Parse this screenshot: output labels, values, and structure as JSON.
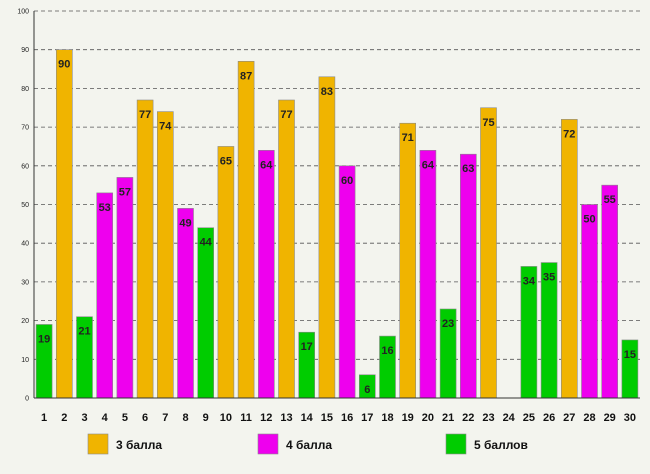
{
  "chart_data": {
    "type": "bar",
    "title": "",
    "xlabel": "",
    "ylabel": "",
    "ylim": [
      0,
      100
    ],
    "ytick_step": 10,
    "grid": true,
    "legend_position": "bottom",
    "categories": [
      "1",
      "2",
      "3",
      "4",
      "5",
      "6",
      "7",
      "8",
      "9",
      "10",
      "11",
      "12",
      "13",
      "14",
      "15",
      "16",
      "17",
      "18",
      "19",
      "20",
      "21",
      "22",
      "23",
      "24",
      "25",
      "26",
      "27",
      "28",
      "29",
      "30"
    ],
    "bars": [
      {
        "category": "1",
        "value": 19,
        "series": "5 баллов"
      },
      {
        "category": "2",
        "value": 90,
        "series": "3 балла"
      },
      {
        "category": "3",
        "value": 21,
        "series": "5 баллов"
      },
      {
        "category": "4",
        "value": 53,
        "series": "4 балла"
      },
      {
        "category": "5",
        "value": 57,
        "series": "4 балла"
      },
      {
        "category": "6",
        "value": 77,
        "series": "3 балла"
      },
      {
        "category": "7",
        "value": 74,
        "series": "3 балла"
      },
      {
        "category": "8",
        "value": 49,
        "series": "4 балла"
      },
      {
        "category": "9",
        "value": 44,
        "series": "5 баллов"
      },
      {
        "category": "10",
        "value": 65,
        "series": "3 балла"
      },
      {
        "category": "11",
        "value": 87,
        "series": "3 балла"
      },
      {
        "category": "12",
        "value": 64,
        "series": "4 балла"
      },
      {
        "category": "13",
        "value": 77,
        "series": "3 балла"
      },
      {
        "category": "14",
        "value": 17,
        "series": "5 баллов"
      },
      {
        "category": "15",
        "value": 83,
        "series": "3 балла"
      },
      {
        "category": "16",
        "value": 60,
        "series": "4 балла"
      },
      {
        "category": "17",
        "value": 6,
        "series": "5 баллов"
      },
      {
        "category": "18",
        "value": 16,
        "series": "5 баллов"
      },
      {
        "category": "19",
        "value": 71,
        "series": "3 балла"
      },
      {
        "category": "20",
        "value": 64,
        "series": "4 балла"
      },
      {
        "category": "21",
        "value": 23,
        "series": "5 баллов"
      },
      {
        "category": "22",
        "value": 63,
        "series": "4 балла"
      },
      {
        "category": "23",
        "value": 75,
        "series": "3 балла"
      },
      {
        "category": "24",
        "value": null,
        "series": null
      },
      {
        "category": "25",
        "value": 34,
        "series": "5 баллов"
      },
      {
        "category": "26",
        "value": 35,
        "series": "5 баллов"
      },
      {
        "category": "27",
        "value": 72,
        "series": "3 балла"
      },
      {
        "category": "28",
        "value": 50,
        "series": "4 балла"
      },
      {
        "category": "29",
        "value": 55,
        "series": "4 балла"
      },
      {
        "category": "30",
        "value": 15,
        "series": "5 баллов"
      }
    ],
    "series": [
      {
        "name": "3 балла",
        "color": "#f0b400"
      },
      {
        "name": "4 балла",
        "color": "#ee00ee"
      },
      {
        "name": "5 баллов",
        "color": "#00cc00"
      }
    ]
  }
}
